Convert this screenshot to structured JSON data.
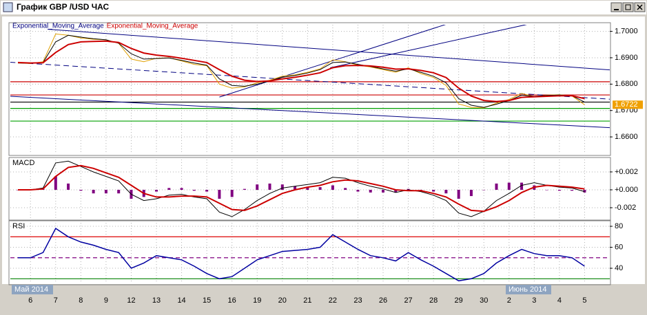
{
  "window": {
    "title": "График GBP /USD ЧАС"
  },
  "chart_data": [
    {
      "type": "line",
      "xlim": [
        -0.8,
        23
      ],
      "ylim": [
        1.6535,
        1.7025
      ],
      "yticks": [
        {
          "value": 1.7,
          "label": "1.7000"
        },
        {
          "value": 1.69,
          "label": "1.6900"
        },
        {
          "value": 1.68,
          "label": "1.6800"
        },
        {
          "value": 1.67,
          "label": "1.6700"
        },
        {
          "value": 1.66,
          "label": "1.6600"
        }
      ],
      "grid": true,
      "x": [
        -0.5,
        0,
        0.5,
        1,
        1.5,
        2,
        2.5,
        3,
        3.5,
        4,
        4.5,
        5,
        5.5,
        6,
        6.5,
        7,
        7.5,
        8,
        8.5,
        9,
        9.5,
        10,
        10.5,
        11,
        11.5,
        12,
        12.5,
        13,
        13.5,
        14,
        14.5,
        15,
        15.5,
        16,
        16.5,
        17,
        17.5,
        18,
        18.5,
        19,
        19.5,
        20,
        20.5,
        21,
        21.5,
        22
      ],
      "series": [
        {
          "color": "#e0a000",
          "width": 1,
          "values": [
            1.688,
            1.6878,
            1.6885,
            1.699,
            1.6985,
            1.6975,
            1.697,
            1.6968,
            1.6955,
            1.6895,
            1.6885,
            1.6898,
            1.69,
            1.6888,
            1.6875,
            1.687,
            1.68,
            1.6785,
            1.679,
            1.6805,
            1.6815,
            1.683,
            1.6835,
            1.6845,
            1.6858,
            1.6892,
            1.6885,
            1.6872,
            1.6865,
            1.6855,
            1.6845,
            1.6862,
            1.684,
            1.6825,
            1.6795,
            1.6725,
            1.6712,
            1.671,
            1.6728,
            1.6742,
            1.6765,
            1.6752,
            1.6758,
            1.676,
            1.6755,
            1.6722
          ]
        },
        {
          "name": "Exponential_Moving_Average",
          "color": "#000000",
          "width": 1,
          "values": [
            1.688,
            1.6879,
            1.6882,
            1.696,
            1.6985,
            1.6978,
            1.6972,
            1.6968,
            1.6955,
            1.6915,
            1.6895,
            1.6897,
            1.6899,
            1.689,
            1.688,
            1.6872,
            1.682,
            1.6795,
            1.6792,
            1.68,
            1.6812,
            1.6826,
            1.6833,
            1.6842,
            1.6855,
            1.6882,
            1.6884,
            1.6875,
            1.6867,
            1.6858,
            1.6849,
            1.6858,
            1.6845,
            1.683,
            1.6805,
            1.6745,
            1.672,
            1.6712,
            1.6724,
            1.6738,
            1.6758,
            1.6754,
            1.6757,
            1.6759,
            1.6756,
            1.6732
          ]
        },
        {
          "name": "Exponential_Moving_Average",
          "color": "#cc0000",
          "width": 2,
          "values": [
            1.6882,
            1.688,
            1.6881,
            1.692,
            1.695,
            1.696,
            1.6962,
            1.6963,
            1.6958,
            1.6935,
            1.6918,
            1.691,
            1.6905,
            1.6898,
            1.689,
            1.6882,
            1.6855,
            1.683,
            1.6815,
            1.681,
            1.6812,
            1.682,
            1.6826,
            1.6834,
            1.6843,
            1.6862,
            1.687,
            1.6871,
            1.6869,
            1.6864,
            1.6857,
            1.6858,
            1.6852,
            1.6843,
            1.6825,
            1.6785,
            1.6755,
            1.6738,
            1.6734,
            1.6738,
            1.675,
            1.6752,
            1.6754,
            1.6756,
            1.6756,
            1.6745
          ]
        }
      ],
      "hlines": [
        {
          "value": 1.6809,
          "color": "#cc0000"
        },
        {
          "value": 1.6759,
          "color": "#cc0000"
        },
        {
          "value": 1.6732,
          "color": "#000000"
        },
        {
          "value": 1.6708,
          "color": "#00a000"
        },
        {
          "value": 1.666,
          "color": "#00a000"
        }
      ],
      "trendlines": [
        {
          "x": [
            0.68,
            23
          ],
          "values": [
            1.7008,
            1.6854
          ],
          "color": "#000080",
          "dashed": false
        },
        {
          "x": [
            -0.82,
            23
          ],
          "values": [
            1.6754,
            1.6635
          ],
          "color": "#000080",
          "dashed": false
        },
        {
          "x": [
            -0.82,
            23
          ],
          "values": [
            1.6883,
            1.6743
          ],
          "color": "#000080",
          "dashed": true
        },
        {
          "x": [
            7.5,
            17.1
          ],
          "values": [
            1.6751,
            1.7045
          ],
          "color": "#000080",
          "dashed": false
        },
        {
          "x": [
            11.9,
            20.7
          ],
          "values": [
            1.6862,
            1.7047
          ],
          "color": "#000080",
          "dashed": false
        }
      ],
      "last_price": {
        "value": 1.6722,
        "label": "1.6722"
      }
    },
    {
      "type": "macd",
      "title": "MACD",
      "xlim": [
        -0.8,
        23
      ],
      "ylim": [
        -0.00323,
        0.00338
      ],
      "yticks": [
        {
          "value": 0.002,
          "label": "+0.002"
        },
        {
          "value": 0,
          "label": "+0.000"
        },
        {
          "value": -0.002,
          "label": "-0.002"
        }
      ],
      "grid": true,
      "x": [
        -0.5,
        0,
        0.5,
        1,
        1.5,
        2,
        2.5,
        3,
        3.5,
        4,
        4.5,
        5,
        5.5,
        6,
        6.5,
        7,
        7.5,
        8,
        8.5,
        9,
        9.5,
        10,
        10.5,
        11,
        11.5,
        12,
        12.5,
        13,
        13.5,
        14,
        14.5,
        15,
        15.5,
        16,
        16.5,
        17,
        17.5,
        18,
        18.5,
        19,
        19.5,
        20,
        20.5,
        21,
        21.5,
        22
      ],
      "histogram": {
        "color": "#800080",
        "values": [
          0,
          0,
          0.0001,
          0.0015,
          0.0007,
          -0.0001,
          -0.0004,
          -0.0004,
          -0.0004,
          -0.001,
          -0.0008,
          -0.0002,
          0.0002,
          0.0002,
          -0.0001,
          -0.0002,
          -0.001,
          -0.0008,
          0.0001,
          0.0006,
          0.0007,
          0.0006,
          0.0004,
          0.0003,
          0.0003,
          0.0005,
          0.0002,
          -0.0002,
          -0.0003,
          -0.0003,
          -0.0003,
          0.0001,
          -0.0001,
          -0.0002,
          -0.0004,
          -0.001,
          -0.0007,
          0,
          0.0007,
          0.0008,
          0.0008,
          0.0005,
          0,
          -0.0001,
          -0.0001,
          -0.0003
        ]
      },
      "series": [
        {
          "color": "#000000",
          "width": 1,
          "values": [
            0,
            0,
            0.0002,
            0.003,
            0.0032,
            0.0026,
            0.002,
            0.0015,
            0.001,
            -0.0005,
            -0.0012,
            -0.001,
            -0.0006,
            -0.0005,
            -0.0008,
            -0.001,
            -0.0025,
            -0.003,
            -0.0022,
            -0.0012,
            -0.0004,
            0.0002,
            0.0004,
            0.0006,
            0.0008,
            0.0014,
            0.0013,
            0.0008,
            0.0004,
            0.0001,
            -0.0003,
            0,
            -0.0002,
            -0.0006,
            -0.0012,
            -0.0026,
            -0.003,
            -0.0024,
            -0.0012,
            -0.0004,
            0.0005,
            0.0008,
            0.0005,
            0.0003,
            0.0002,
            -0.0002
          ]
        },
        {
          "color": "#cc0000",
          "width": 2,
          "values": [
            0,
            0,
            0.0001,
            0.0015,
            0.0025,
            0.0027,
            0.0024,
            0.0019,
            0.0014,
            0.0005,
            -0.0004,
            -0.0008,
            -0.0008,
            -0.0007,
            -0.0007,
            -0.0008,
            -0.0015,
            -0.0022,
            -0.0023,
            -0.0018,
            -0.0011,
            -0.0004,
            0,
            0.0003,
            0.0005,
            0.0009,
            0.0011,
            0.001,
            0.0007,
            0.0004,
            0,
            -0.0001,
            -0.0001,
            -0.0004,
            -0.0008,
            -0.0016,
            -0.0023,
            -0.0024,
            -0.0019,
            -0.0012,
            -0.0003,
            0.0003,
            0.0005,
            0.0004,
            0.0003,
            0.0001
          ]
        }
      ]
    },
    {
      "type": "line",
      "title": "RSI",
      "xlim": [
        -0.8,
        23
      ],
      "ylim": [
        25.6,
        83.3
      ],
      "yticks": [
        40,
        60,
        80
      ],
      "grid": true,
      "x": [
        -0.5,
        0,
        0.5,
        1,
        1.5,
        2,
        2.5,
        3,
        3.5,
        4,
        4.5,
        5,
        5.5,
        6,
        6.5,
        7,
        7.5,
        8,
        8.5,
        9,
        9.5,
        10,
        10.5,
        11,
        11.5,
        12,
        12.5,
        13,
        13.5,
        14,
        14.5,
        15,
        15.5,
        16,
        16.5,
        17,
        17.5,
        18,
        18.5,
        19,
        19.5,
        20,
        20.5,
        21,
        21.5,
        22
      ],
      "series": [
        {
          "color": "#0000a0",
          "width": 1.5,
          "values": [
            50,
            50,
            55,
            78,
            70,
            65,
            62,
            58,
            55,
            40,
            45,
            52,
            50,
            48,
            42,
            35,
            30,
            32,
            40,
            48,
            52,
            56,
            57,
            58,
            60,
            72,
            65,
            58,
            52,
            50,
            47,
            55,
            48,
            42,
            35,
            28,
            30,
            35,
            45,
            52,
            58,
            54,
            52,
            52,
            50,
            42
          ]
        }
      ],
      "hlines": [
        {
          "value": 70,
          "color": "#dd0000"
        },
        {
          "value": 50,
          "color": "#800080",
          "dashed": true
        },
        {
          "value": 30,
          "color": "#008000"
        }
      ],
      "xticks": [
        {
          "value": 0,
          "label": "6"
        },
        {
          "value": 1,
          "label": "7"
        },
        {
          "value": 2,
          "label": "8"
        },
        {
          "value": 3,
          "label": "9"
        },
        {
          "value": 4,
          "label": "12"
        },
        {
          "value": 5,
          "label": "13"
        },
        {
          "value": 6,
          "label": "14"
        },
        {
          "value": 7,
          "label": "15"
        },
        {
          "value": 8,
          "label": "16"
        },
        {
          "value": 9,
          "label": "19"
        },
        {
          "value": 10,
          "label": "20"
        },
        {
          "value": 11,
          "label": "21"
        },
        {
          "value": 12,
          "label": "22"
        },
        {
          "value": 13,
          "label": "23"
        },
        {
          "value": 14,
          "label": "26"
        },
        {
          "value": 15,
          "label": "27"
        },
        {
          "value": 16,
          "label": "28"
        },
        {
          "value": 17,
          "label": "29"
        },
        {
          "value": 18,
          "label": "30"
        },
        {
          "value": 19,
          "label": "2"
        },
        {
          "value": 20,
          "label": "3"
        },
        {
          "value": 21,
          "label": "4"
        },
        {
          "value": 22,
          "label": "5"
        }
      ],
      "month_labels": [
        "Май 2014",
        "Июнь 2014"
      ]
    }
  ]
}
